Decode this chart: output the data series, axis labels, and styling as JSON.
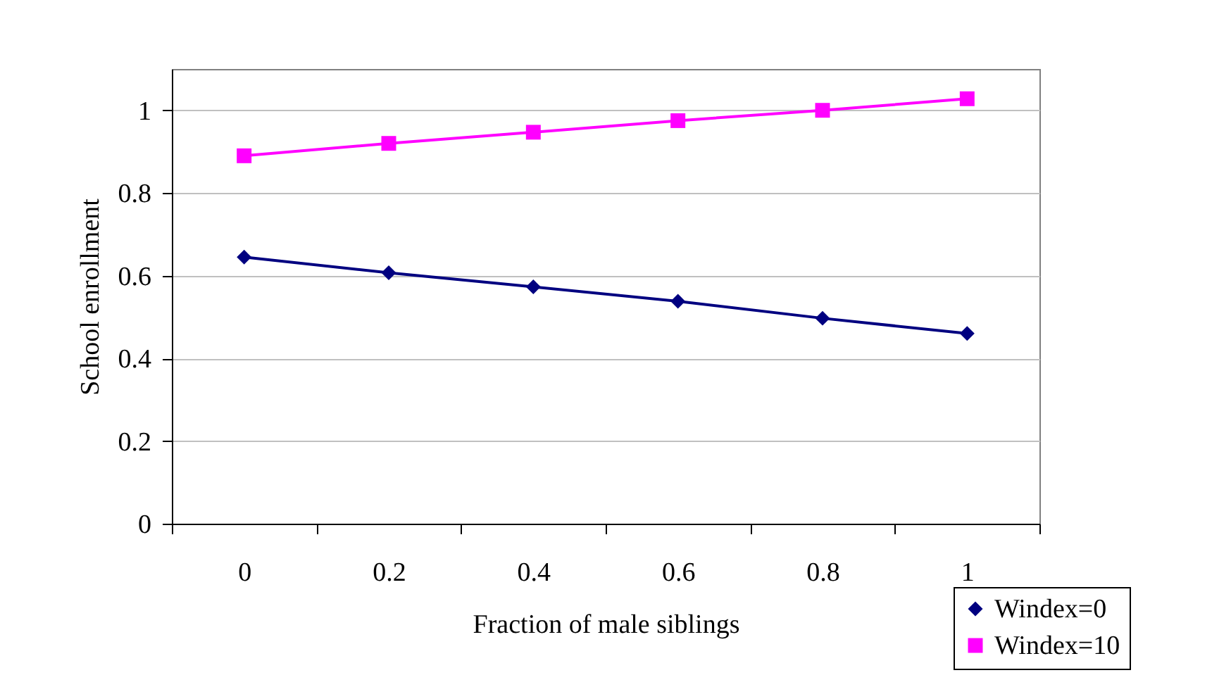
{
  "chart_data": {
    "type": "line",
    "xlabel": "Fraction of male siblings",
    "ylabel": "School enrollment",
    "categories": [
      "0",
      "0.2",
      "0.4",
      "0.6",
      "0.8",
      "1"
    ],
    "series": [
      {
        "name": "Windex=0",
        "color": "#000080",
        "marker": "diamond",
        "values": [
          0.645,
          0.607,
          0.573,
          0.538,
          0.497,
          0.46
        ]
      },
      {
        "name": "Windex=10",
        "color": "#ff00ff",
        "marker": "square",
        "values": [
          0.89,
          0.92,
          0.947,
          0.975,
          1.0,
          1.028
        ]
      }
    ],
    "ylim": [
      0,
      1.1
    ],
    "yticks": [
      0,
      0.2,
      0.4,
      0.6,
      0.8,
      1
    ],
    "grid": "y",
    "legend": "bottom right",
    "line_style": "solid"
  }
}
